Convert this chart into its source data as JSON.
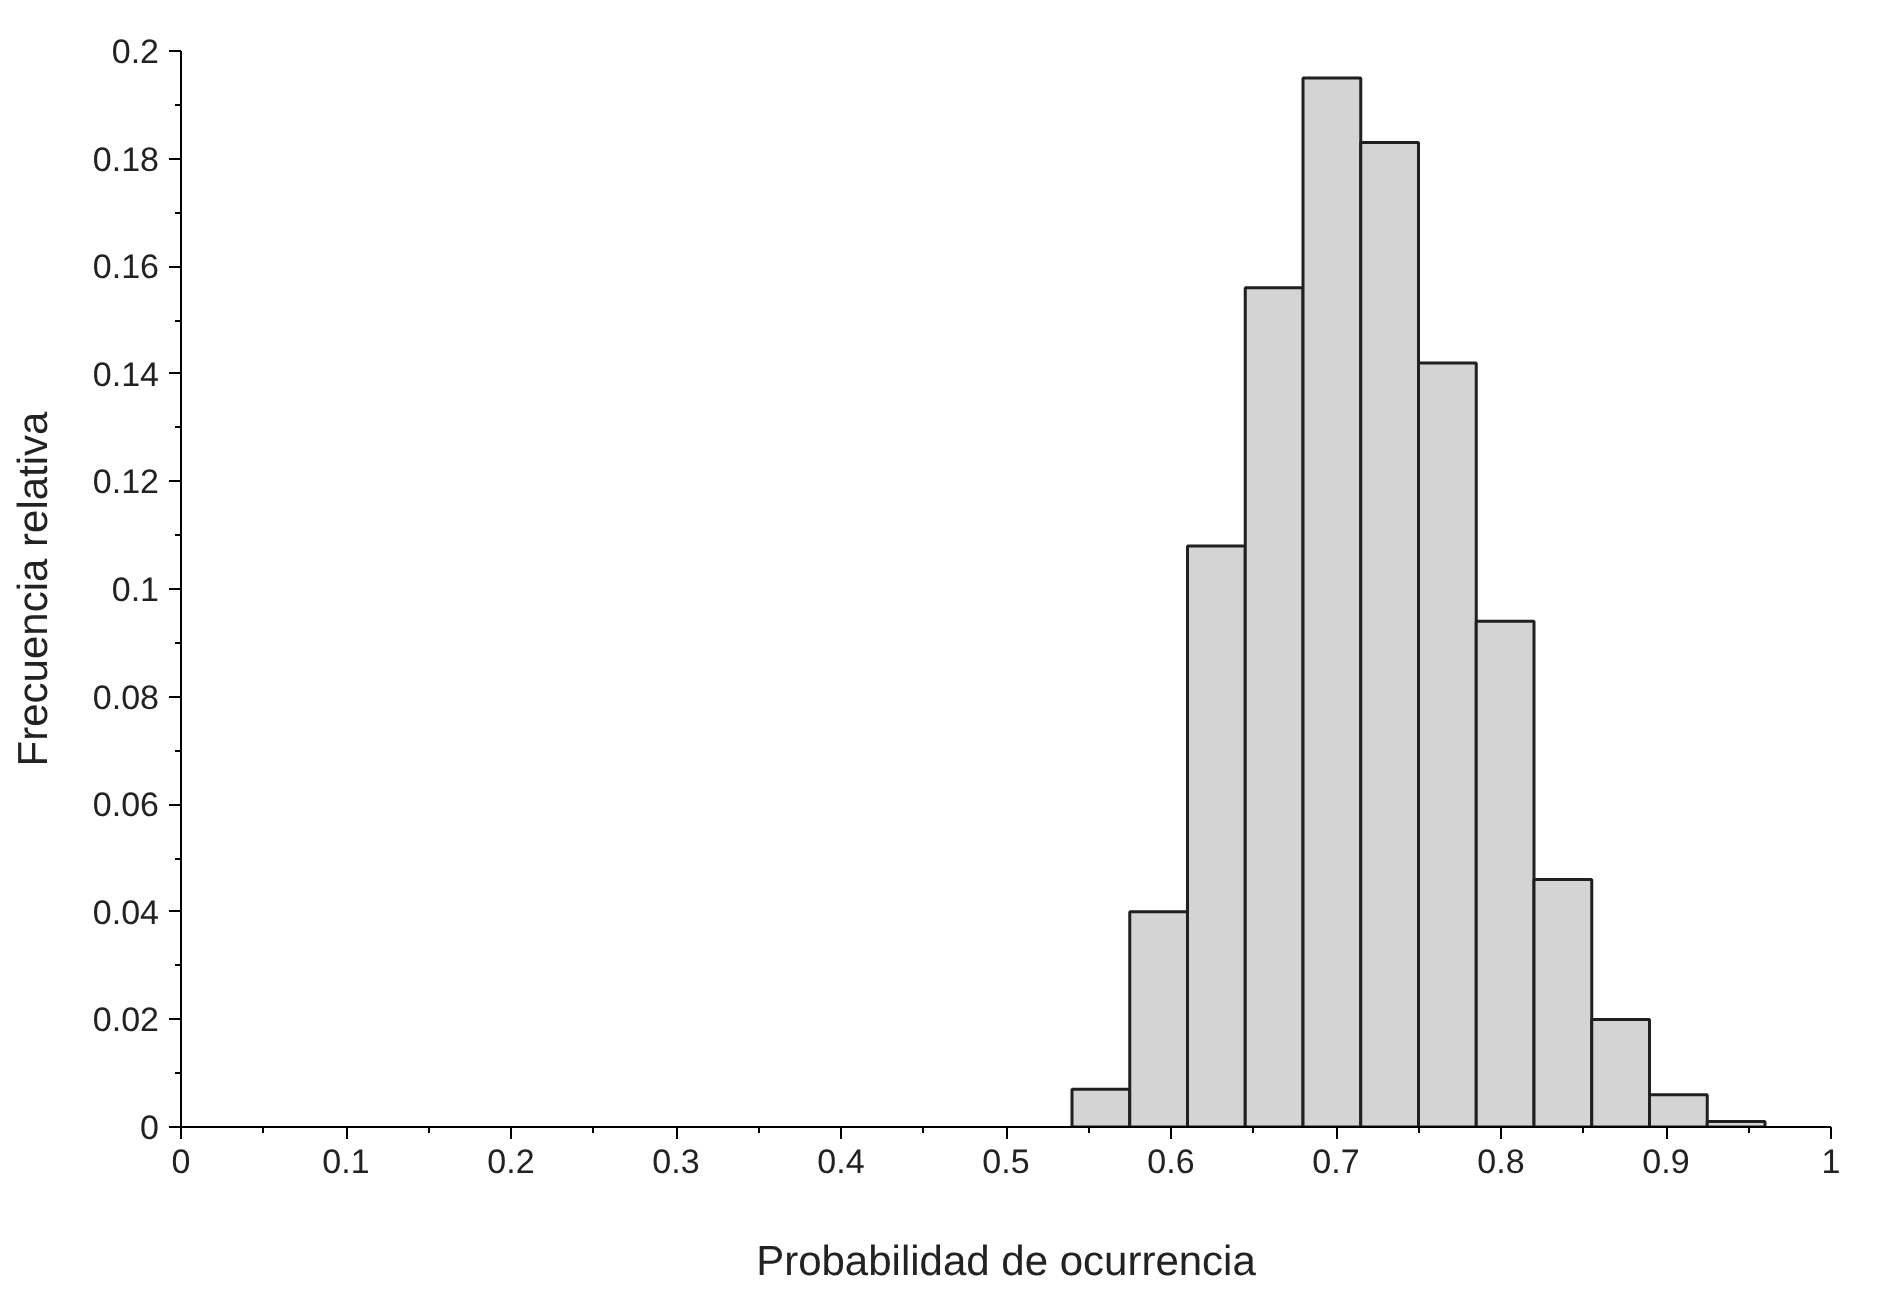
{
  "chart_data": {
    "type": "histogram",
    "xlabel": "Probabilidad de ocurrencia",
    "ylabel": "Frecuencia relativa",
    "bins": [
      0.54,
      0.575,
      0.61,
      0.645,
      0.68,
      0.715,
      0.75,
      0.785,
      0.82,
      0.855,
      0.89,
      0.925,
      0.96
    ],
    "values": [
      0.007,
      0.04,
      0.108,
      0.156,
      0.195,
      0.183,
      0.142,
      0.094,
      0.046,
      0.02,
      0.006,
      0.001
    ],
    "color": "#d4d4d4",
    "xlim": [
      0,
      1
    ],
    "xticks": [
      0,
      0.1,
      0.2,
      0.3,
      0.4,
      0.5,
      0.6,
      0.7,
      0.8,
      0.9,
      1
    ],
    "ylim": [
      0,
      0.2
    ],
    "yticks": [
      0,
      0.02,
      0.04,
      0.06,
      0.08,
      0.1,
      0.12,
      0.14,
      0.16,
      0.18,
      0.2
    ],
    "grid": false
  }
}
